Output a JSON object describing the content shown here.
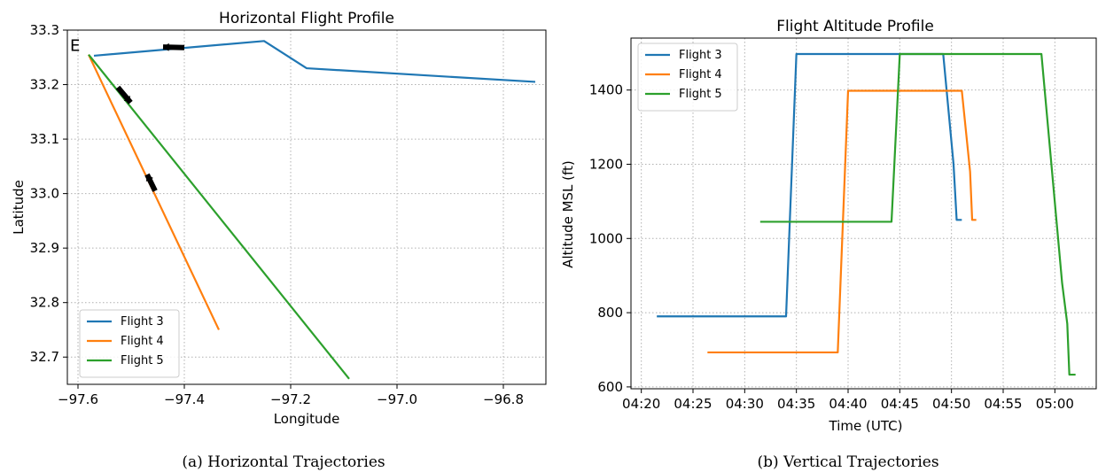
{
  "colors": {
    "flight3": "#1f77b4",
    "flight4": "#ff7f0e",
    "flight5": "#2ca02c",
    "grid": "#b0b0b0",
    "arrow": "#000000"
  },
  "chart_data": [
    {
      "type": "line",
      "title": "Horizontal Flight Profile",
      "xlabel": "Longitude",
      "ylabel": "Latitude",
      "caption": "(a) Horizontal Trajectories",
      "xlim": [
        -97.62,
        -96.72
      ],
      "ylim": [
        32.65,
        33.3
      ],
      "xticks": [
        -97.6,
        -97.4,
        -97.2,
        -97.0,
        -96.8
      ],
      "xtick_labels": [
        "−97.6",
        "−97.4",
        "−97.2",
        "−97.0",
        "−96.8"
      ],
      "yticks": [
        32.7,
        32.8,
        32.9,
        33.0,
        33.1,
        33.2,
        33.3
      ],
      "ytick_labels": [
        "32.7",
        "32.8",
        "32.9",
        "33.0",
        "33.1",
        "33.2",
        "33.3"
      ],
      "grid": true,
      "grid_style": "dotted",
      "legend_position": "lower-left",
      "annotation": {
        "text": "E",
        "x": -97.605,
        "y": 33.275
      },
      "series": [
        {
          "name": "Flight 3",
          "color_key": "flight3",
          "x": [
            -96.74,
            -97.17,
            -97.25,
            -97.57
          ],
          "y": [
            33.205,
            33.23,
            33.28,
            33.253
          ]
        },
        {
          "name": "Flight 4",
          "color_key": "flight4",
          "x": [
            -97.58,
            -97.335
          ],
          "y": [
            33.255,
            32.75
          ]
        },
        {
          "name": "Flight 5",
          "color_key": "flight5",
          "x": [
            -97.58,
            -97.09
          ],
          "y": [
            33.255,
            32.66
          ]
        }
      ],
      "direction_arrows": [
        {
          "x": -97.4,
          "y": 33.268,
          "dx": -0.04,
          "dy": 0.001
        },
        {
          "x": -97.525,
          "y": 33.195,
          "dx": 0.024,
          "dy": -0.028
        },
        {
          "x": -97.455,
          "y": 33.005,
          "dx": -0.015,
          "dy": 0.03
        }
      ]
    },
    {
      "type": "line",
      "title": "Flight Altitude Profile",
      "xlabel": "Time (UTC)",
      "ylabel": "Altitude MSL (ft)",
      "caption": "(b) Vertical Trajectories",
      "xlim": [
        "04:19:00",
        "05:04:00"
      ],
      "ylim": [
        595,
        1540
      ],
      "xticks": [
        "04:20",
        "04:25",
        "04:30",
        "04:35",
        "04:40",
        "04:45",
        "04:50",
        "04:55",
        "05:00"
      ],
      "yticks": [
        600,
        800,
        1000,
        1200,
        1400
      ],
      "grid": true,
      "grid_style": "dotted",
      "legend_position": "top-left",
      "series": [
        {
          "name": "Flight 3",
          "color_key": "flight3",
          "x": [
            "04:21:30",
            "04:34:00",
            "04:35:00",
            "04:49:12",
            "04:50:12",
            "04:50:30",
            "04:51:00"
          ],
          "y": [
            790,
            790,
            1497,
            1497,
            1200,
            1050,
            1050
          ]
        },
        {
          "name": "Flight 4",
          "color_key": "flight4",
          "x": [
            "04:26:24",
            "04:39:00",
            "04:40:00",
            "04:51:00",
            "04:51:48",
            "04:52:00",
            "04:52:24"
          ],
          "y": [
            693,
            693,
            1398,
            1398,
            1180,
            1050,
            1050
          ]
        },
        {
          "name": "Flight 5",
          "color_key": "flight5",
          "x": [
            "04:31:30",
            "04:44:12",
            "04:45:00",
            "04:58:42",
            "05:00:42",
            "05:01:12",
            "05:01:24",
            "05:02:00"
          ],
          "y": [
            1045,
            1045,
            1497,
            1497,
            880,
            770,
            633,
            633
          ]
        }
      ]
    }
  ]
}
